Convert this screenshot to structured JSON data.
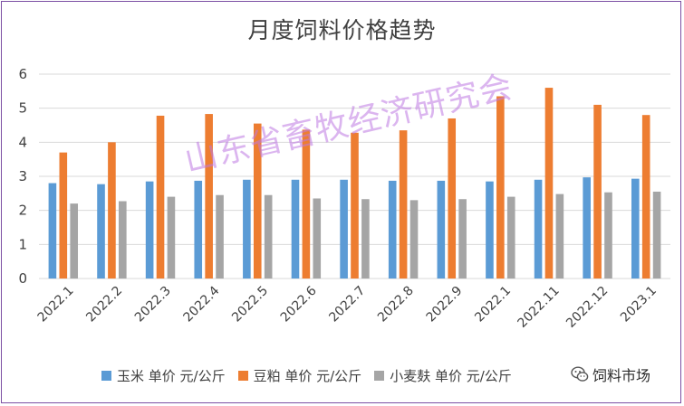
{
  "chart_data": {
    "type": "bar",
    "title": "月度饲料价格趋势",
    "categories": [
      "2022.1",
      "2022.2",
      "2022.3",
      "2022.4",
      "2022.5",
      "2022.6",
      "2022.7",
      "2022.8",
      "2022.9",
      "2022.1",
      "2022.11",
      "2022.12",
      "2023.1"
    ],
    "series": [
      {
        "name": "玉米 单价 元/公斤",
        "color": "#5b9bd5",
        "values": [
          2.8,
          2.77,
          2.85,
          2.87,
          2.9,
          2.9,
          2.9,
          2.87,
          2.87,
          2.85,
          2.9,
          2.97,
          2.93
        ]
      },
      {
        "name": "豆粕 单价 元/公斤",
        "color": "#ed7d31",
        "values": [
          3.7,
          4.0,
          4.78,
          4.83,
          4.55,
          4.37,
          4.28,
          4.35,
          4.7,
          5.35,
          5.6,
          5.1,
          4.8
        ]
      },
      {
        "name": "小麦麸 单价 元/公斤",
        "color": "#a5a5a5",
        "values": [
          2.2,
          2.27,
          2.4,
          2.45,
          2.45,
          2.35,
          2.33,
          2.3,
          2.33,
          2.4,
          2.48,
          2.53,
          2.55
        ]
      }
    ],
    "ylim": [
      0,
      6
    ],
    "yticks": [
      0,
      1,
      2,
      3,
      4,
      5,
      6
    ],
    "grid": true,
    "legend_position": "bottom",
    "watermark": "山东省畜牧经济研究会"
  },
  "brand": {
    "label": "饲料市场",
    "icon": "wechat-icon"
  }
}
